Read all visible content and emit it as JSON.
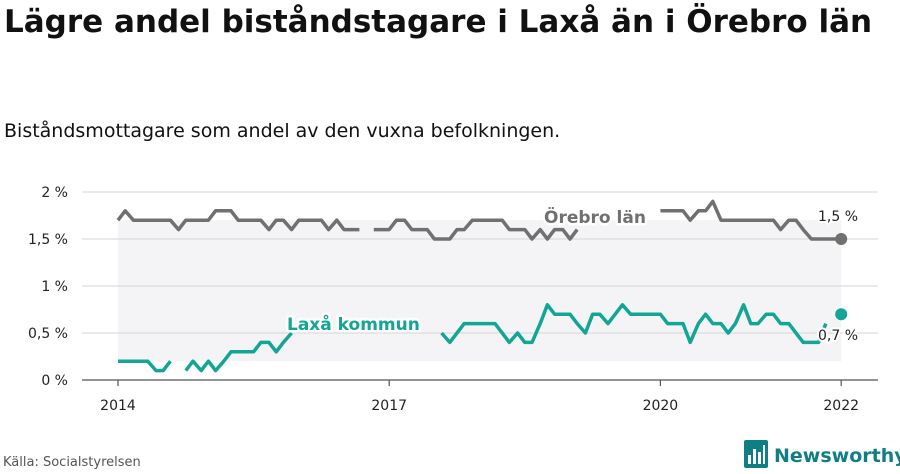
{
  "header": {
    "title": "Lägre andel biståndstagare i Laxå än i Örebro län",
    "subtitle": "Biståndsmottagare som andel av den vuxna befolkningen."
  },
  "footer": {
    "source": "Källa: Socialstyrelsen",
    "brand": "Newsworthy",
    "brand_icon": "bar-chart-logo-icon"
  },
  "colors": {
    "orebro": "#707070",
    "laxa": "#13a596",
    "band": "#f4f4f6",
    "grid": "#d6d6d6",
    "brand": "#0f7e85"
  },
  "chart_data": {
    "type": "line",
    "ylim": [
      0,
      2
    ],
    "yticks": [
      0,
      0.5,
      1,
      1.5,
      2
    ],
    "ytick_labels": [
      "0 %",
      "0,5 %",
      "1 %",
      "1,5 %",
      "2 %"
    ],
    "xticks": [
      2014,
      2017,
      2020,
      2022
    ],
    "xtick_labels": [
      "2014",
      "2017",
      "2020",
      "2022"
    ],
    "xlim": [
      2013.6,
      2022.4
    ],
    "grid": true,
    "series": [
      {
        "name": "Örebro län",
        "end_label": "1,5 %",
        "color": "#707070",
        "x": [
          2014.0,
          2014.08,
          2014.17,
          2014.25,
          2014.33,
          2014.42,
          2014.5,
          2014.58,
          2014.67,
          2014.75,
          2014.83,
          2014.92,
          2015.0,
          2015.08,
          2015.17,
          2015.25,
          2015.33,
          2015.42,
          2015.5,
          2015.58,
          2015.67,
          2015.75,
          2015.83,
          2015.92,
          2016.0,
          2016.08,
          2016.17,
          2016.25,
          2016.33,
          2016.42,
          2016.5,
          2016.58,
          2016.67,
          2016.75,
          2016.83,
          2016.92,
          2017.0,
          2017.08,
          2017.17,
          2017.25,
          2017.33,
          2017.42,
          2017.5,
          2017.58,
          2017.67,
          2017.75,
          2017.83,
          2017.92,
          2018.0,
          2018.08,
          2018.17,
          2018.25,
          2018.33,
          2018.42,
          2018.5,
          2018.58,
          2018.67,
          2018.75,
          2018.83,
          2018.92,
          2019.0,
          2019.08,
          2019.17,
          2019.25,
          2019.33,
          2019.42,
          2019.5,
          2019.58,
          2019.67,
          2019.75,
          2019.83,
          2019.92,
          2020.0,
          2020.08,
          2020.17,
          2020.25,
          2020.33,
          2020.42,
          2020.5,
          2020.58,
          2020.67,
          2020.75,
          2020.83,
          2020.92,
          2021.0,
          2021.08,
          2021.17,
          2021.25,
          2021.33,
          2021.42,
          2021.5,
          2021.58,
          2021.67,
          2021.75,
          2021.83,
          2021.92,
          2022.0
        ],
        "values": [
          1.7,
          1.8,
          1.7,
          1.7,
          1.7,
          1.7,
          1.7,
          1.7,
          1.6,
          1.7,
          1.7,
          1.7,
          1.7,
          1.8,
          1.8,
          1.8,
          1.7,
          1.7,
          1.7,
          1.7,
          1.6,
          1.7,
          1.7,
          1.6,
          1.7,
          1.7,
          1.7,
          1.7,
          1.6,
          1.7,
          1.6,
          1.6,
          1.6,
          null,
          1.6,
          1.6,
          1.6,
          1.7,
          1.7,
          1.6,
          1.6,
          1.6,
          1.5,
          1.5,
          1.5,
          1.6,
          1.6,
          1.7,
          1.7,
          1.7,
          1.7,
          1.7,
          1.6,
          1.6,
          1.6,
          1.5,
          1.6,
          1.5,
          1.6,
          1.6,
          1.5,
          1.6,
          null,
          null,
          null,
          null,
          null,
          null,
          null,
          null,
          null,
          null,
          1.8,
          1.8,
          1.8,
          1.8,
          1.7,
          1.8,
          1.8,
          1.9,
          1.7,
          1.7,
          1.7,
          1.7,
          1.7,
          1.7,
          1.7,
          1.7,
          1.6,
          1.7,
          1.7,
          1.6,
          1.5,
          1.5,
          1.5,
          1.5,
          1.5
        ]
      },
      {
        "name": "Laxå kommun",
        "end_label": "0,7 %",
        "color": "#13a596",
        "x": [
          2014.0,
          2014.08,
          2014.17,
          2014.25,
          2014.33,
          2014.42,
          2014.5,
          2014.58,
          2014.67,
          2014.75,
          2014.83,
          2014.92,
          2015.0,
          2015.08,
          2015.17,
          2015.25,
          2015.33,
          2015.42,
          2015.5,
          2015.58,
          2015.67,
          2015.75,
          2015.83,
          2015.92,
          2016.0,
          2016.08,
          2016.17,
          2016.25,
          2016.33,
          2016.42,
          2016.5,
          2016.58,
          2016.67,
          2016.75,
          2016.83,
          2016.92,
          2017.0,
          2017.08,
          2017.17,
          2017.25,
          2017.33,
          2017.42,
          2017.5,
          2017.58,
          2017.67,
          2017.75,
          2017.83,
          2017.92,
          2018.0,
          2018.08,
          2018.17,
          2018.25,
          2018.33,
          2018.42,
          2018.5,
          2018.58,
          2018.67,
          2018.75,
          2018.83,
          2018.92,
          2019.0,
          2019.08,
          2019.17,
          2019.25,
          2019.33,
          2019.42,
          2019.5,
          2019.58,
          2019.67,
          2019.75,
          2019.83,
          2019.92,
          2020.0,
          2020.08,
          2020.17,
          2020.25,
          2020.33,
          2020.42,
          2020.5,
          2020.58,
          2020.67,
          2020.75,
          2020.83,
          2020.92,
          2021.0,
          2021.08,
          2021.17,
          2021.25,
          2021.33,
          2021.42,
          2021.5,
          2021.58,
          2021.67,
          2021.75,
          2021.83,
          2021.92,
          2022.0
        ],
        "values": [
          0.2,
          0.2,
          0.2,
          0.2,
          0.2,
          0.1,
          0.1,
          0.2,
          null,
          0.1,
          0.2,
          0.1,
          0.2,
          0.1,
          0.2,
          0.3,
          0.3,
          0.3,
          0.3,
          0.4,
          0.4,
          0.3,
          0.4,
          0.5,
          null,
          null,
          null,
          null,
          null,
          null,
          null,
          null,
          null,
          null,
          null,
          null,
          null,
          null,
          null,
          null,
          null,
          null,
          null,
          0.5,
          0.4,
          0.5,
          0.6,
          0.6,
          0.6,
          0.6,
          0.6,
          0.5,
          0.4,
          0.5,
          0.4,
          0.4,
          0.6,
          0.8,
          0.7,
          0.7,
          0.7,
          0.6,
          0.5,
          0.7,
          0.7,
          0.6,
          0.7,
          0.8,
          0.7,
          0.7,
          0.7,
          0.7,
          0.7,
          0.6,
          0.6,
          0.6,
          0.4,
          0.6,
          0.7,
          0.6,
          0.6,
          0.5,
          0.6,
          0.8,
          0.6,
          0.6,
          0.7,
          0.7,
          0.6,
          0.6,
          0.5,
          0.4,
          0.4,
          0.4,
          0.6,
          null,
          0.7
        ]
      }
    ]
  }
}
